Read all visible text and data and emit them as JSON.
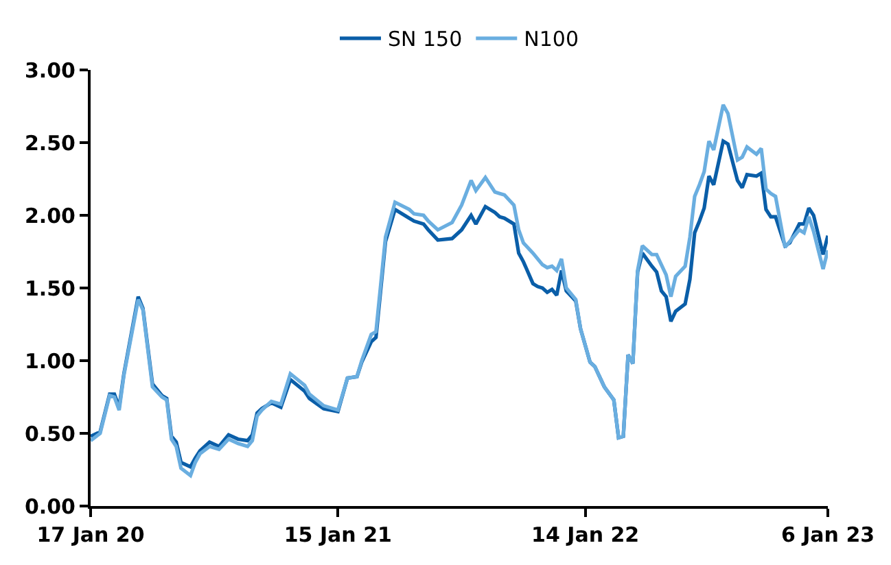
{
  "chart_data": {
    "type": "line",
    "legend": "top",
    "grid": false,
    "marker": "none",
    "line_style": "solid",
    "x": [
      "2020-01-17",
      "2020-01-31",
      "2020-02-14",
      "2020-02-21",
      "2020-02-28",
      "2020-03-06",
      "2020-03-27",
      "2020-04-03",
      "2020-04-17",
      "2020-05-01",
      "2020-05-08",
      "2020-05-15",
      "2020-05-22",
      "2020-05-29",
      "2020-06-12",
      "2020-06-19",
      "2020-06-26",
      "2020-07-10",
      "2020-07-24",
      "2020-08-07",
      "2020-08-21",
      "2020-09-04",
      "2020-09-11",
      "2020-09-18",
      "2020-09-25",
      "2020-10-09",
      "2020-10-23",
      "2020-11-06",
      "2020-11-27",
      "2020-12-04",
      "2020-12-25",
      "2021-01-15",
      "2021-01-29",
      "2021-02-12",
      "2021-02-19",
      "2021-03-05",
      "2021-03-12",
      "2021-03-26",
      "2021-04-09",
      "2021-04-30",
      "2021-05-07",
      "2021-05-21",
      "2021-05-28",
      "2021-06-11",
      "2021-07-02",
      "2021-07-16",
      "2021-07-30",
      "2021-08-06",
      "2021-08-20",
      "2021-09-03",
      "2021-09-10",
      "2021-09-17",
      "2021-10-01",
      "2021-10-08",
      "2021-10-15",
      "2021-10-29",
      "2021-11-05",
      "2021-11-12",
      "2021-11-19",
      "2021-11-26",
      "2021-12-03",
      "2021-12-10",
      "2021-12-17",
      "2021-12-31",
      "2022-01-07",
      "2022-01-21",
      "2022-01-28",
      "2022-02-11",
      "2022-02-25",
      "2022-03-04",
      "2022-03-11",
      "2022-03-18",
      "2022-03-25",
      "2022-04-01",
      "2022-04-08",
      "2022-04-22",
      "2022-04-29",
      "2022-05-06",
      "2022-05-13",
      "2022-05-20",
      "2022-05-27",
      "2022-06-10",
      "2022-06-17",
      "2022-06-24",
      "2022-07-01",
      "2022-07-08",
      "2022-07-15",
      "2022-07-22",
      "2022-08-05",
      "2022-08-12",
      "2022-08-26",
      "2022-09-02",
      "2022-09-09",
      "2022-09-23",
      "2022-09-30",
      "2022-10-07",
      "2022-10-14",
      "2022-10-21",
      "2022-11-04",
      "2022-11-11",
      "2022-11-25",
      "2022-12-02",
      "2022-12-09",
      "2022-12-16",
      "2022-12-30",
      "2023-01-06"
    ],
    "series": [
      {
        "name": "SN 150",
        "color": "#0a5ea8",
        "values": [
          0.48,
          0.51,
          0.77,
          0.77,
          0.68,
          0.91,
          1.44,
          1.36,
          0.84,
          0.76,
          0.74,
          0.48,
          0.44,
          0.3,
          0.27,
          0.33,
          0.38,
          0.44,
          0.41,
          0.49,
          0.46,
          0.45,
          0.49,
          0.64,
          0.67,
          0.71,
          0.68,
          0.87,
          0.79,
          0.74,
          0.67,
          0.65,
          0.88,
          0.89,
          0.99,
          1.13,
          1.16,
          1.82,
          2.04,
          1.98,
          1.96,
          1.94,
          1.9,
          1.83,
          1.84,
          1.9,
          2.0,
          1.94,
          2.06,
          2.02,
          1.99,
          1.98,
          1.94,
          1.74,
          1.68,
          1.53,
          1.51,
          1.5,
          1.47,
          1.49,
          1.45,
          1.62,
          1.48,
          1.41,
          1.22,
          0.99,
          0.96,
          0.82,
          0.73,
          0.47,
          0.48,
          1.04,
          0.98,
          1.61,
          1.74,
          1.65,
          1.61,
          1.48,
          1.44,
          1.27,
          1.34,
          1.39,
          1.56,
          1.88,
          1.96,
          2.05,
          2.27,
          2.21,
          2.51,
          2.49,
          2.24,
          2.19,
          2.28,
          2.27,
          2.29,
          2.04,
          1.99,
          1.99,
          1.79,
          1.81,
          1.94,
          1.94,
          2.05,
          2.0,
          1.73,
          1.86
        ]
      },
      {
        "name": "N100",
        "color": "#6aaee0",
        "values": [
          0.45,
          0.5,
          0.76,
          0.75,
          0.66,
          0.9,
          1.42,
          1.35,
          0.82,
          0.75,
          0.73,
          0.46,
          0.41,
          0.26,
          0.21,
          0.3,
          0.36,
          0.41,
          0.39,
          0.46,
          0.43,
          0.41,
          0.45,
          0.62,
          0.66,
          0.72,
          0.7,
          0.91,
          0.83,
          0.77,
          0.69,
          0.66,
          0.88,
          0.89,
          1.0,
          1.18,
          1.2,
          1.85,
          2.09,
          2.04,
          2.01,
          2.0,
          1.96,
          1.9,
          1.95,
          2.07,
          2.24,
          2.17,
          2.26,
          2.16,
          2.15,
          2.14,
          2.07,
          1.9,
          1.81,
          1.74,
          1.7,
          1.66,
          1.64,
          1.65,
          1.62,
          1.7,
          1.5,
          1.42,
          1.22,
          0.99,
          0.96,
          0.82,
          0.73,
          0.47,
          0.48,
          1.04,
          0.98,
          1.62,
          1.79,
          1.73,
          1.73,
          1.66,
          1.59,
          1.44,
          1.58,
          1.65,
          1.85,
          2.13,
          2.21,
          2.3,
          2.51,
          2.45,
          2.76,
          2.7,
          2.38,
          2.4,
          2.47,
          2.42,
          2.46,
          2.18,
          2.15,
          2.13,
          1.78,
          1.82,
          1.9,
          1.88,
          1.99,
          1.89,
          1.63,
          1.76
        ]
      }
    ],
    "xlim": [
      "2020-01-17",
      "2023-01-06"
    ],
    "xticks": [
      {
        "value": "2020-01-17",
        "label": "17 Jan 20"
      },
      {
        "value": "2021-01-15",
        "label": "15 Jan 21"
      },
      {
        "value": "2022-01-14",
        "label": "14 Jan 22"
      },
      {
        "value": "2023-01-06",
        "label": "6 Jan 23"
      }
    ],
    "ylim": [
      0,
      3
    ],
    "yticks": [
      {
        "value": 0,
        "label": "0.00"
      },
      {
        "value": 0.5,
        "label": "0.50"
      },
      {
        "value": 1,
        "label": "1.00"
      },
      {
        "value": 1.5,
        "label": "1.50"
      },
      {
        "value": 2,
        "label": "2.00"
      },
      {
        "value": 2.5,
        "label": "2.50"
      },
      {
        "value": 3,
        "label": "3.00"
      }
    ]
  }
}
